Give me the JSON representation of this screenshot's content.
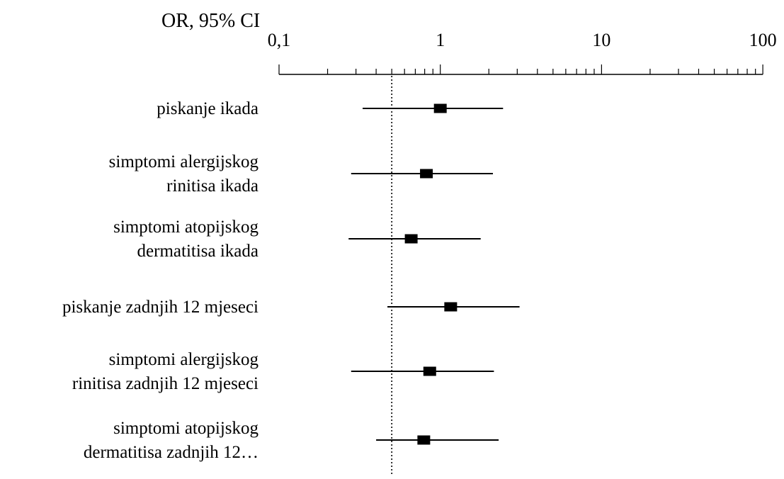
{
  "chart_data": {
    "type": "forest",
    "title": "OR, 95% CI",
    "scale": "log10",
    "xlim": [
      0.1,
      100
    ],
    "x_ticks": [
      {
        "value": 0.1,
        "label": "0,1"
      },
      {
        "value": 1,
        "label": "1"
      },
      {
        "value": 10,
        "label": "10"
      },
      {
        "value": 100,
        "label": "100"
      }
    ],
    "reference_line": 0.5,
    "reference_line_style": "dotted",
    "rows": [
      {
        "label_lines": [
          "piskanje ikada"
        ],
        "or": 1.0,
        "ci_low": 0.33,
        "ci_high": 2.45
      },
      {
        "label_lines": [
          "simptomi alergijskog",
          "rinitisa ikada"
        ],
        "or": 0.82,
        "ci_low": 0.28,
        "ci_high": 2.12
      },
      {
        "label_lines": [
          "simptomi atopijskog",
          "dermatitisa ikada"
        ],
        "or": 0.66,
        "ci_low": 0.27,
        "ci_high": 1.78
      },
      {
        "label_lines": [
          "piskanje zadnjih 12 mjeseci"
        ],
        "or": 1.16,
        "ci_low": 0.47,
        "ci_high": 3.1
      },
      {
        "label_lines": [
          "simptomi alergijskog",
          "rinitisa zadnjih 12 mjeseci"
        ],
        "or": 0.86,
        "ci_low": 0.28,
        "ci_high": 2.15
      },
      {
        "label_lines": [
          "simptomi atopijskog",
          "dermatitisa zadnjih 12…"
        ],
        "or": 0.79,
        "ci_low": 0.4,
        "ci_high": 2.3
      }
    ]
  }
}
